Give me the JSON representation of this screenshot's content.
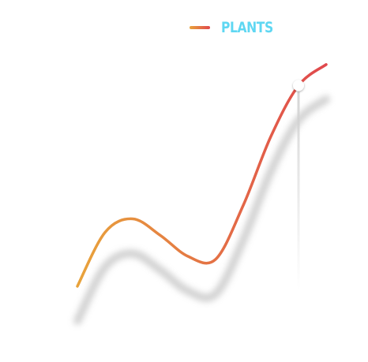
{
  "chart_data": {
    "type": "line",
    "title": "",
    "xlabel": "",
    "ylabel": "",
    "grid": false,
    "legend_placement": "top",
    "xlim": [
      0,
      10
    ],
    "ylim": [
      0,
      10
    ],
    "series": [
      {
        "name": "PLANTS",
        "x": [
          0,
          1,
          2,
          3,
          4,
          5,
          6,
          7,
          8,
          9
        ],
        "y": [
          1.5,
          3.3,
          3.75,
          3.2,
          2.5,
          2.4,
          4.2,
          6.5,
          8.2,
          8.9
        ],
        "highlight_index": 8,
        "gradient": [
          "#e8a33b",
          "#e0484d"
        ]
      }
    ]
  },
  "legend": {
    "label": "PLANTS",
    "label_color": "#5fd7f2"
  },
  "colors": {
    "line_start": "#e8a33b",
    "line_end": "#e0484d",
    "shadow": "#bdbdbd",
    "marker": "#ffffff"
  }
}
